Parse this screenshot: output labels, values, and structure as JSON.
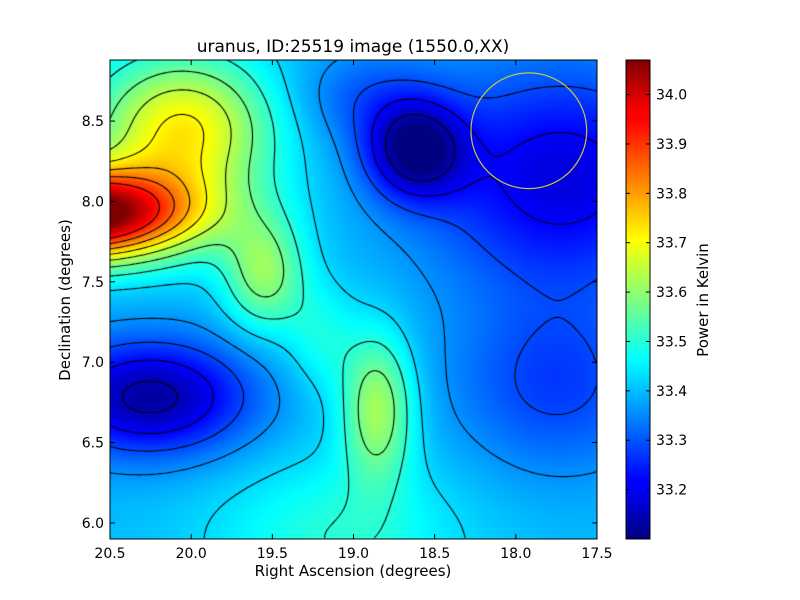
{
  "chart_data": {
    "type": "heatmap",
    "title": "uranus, ID:25519 image (1550.0,XX)",
    "xlabel": "Right Ascension (degrees)",
    "ylabel": "Declination (degrees)",
    "colorbar_label": "Power in Kelvin",
    "xlim": [
      20.5,
      17.5
    ],
    "ylim": [
      5.9,
      8.88
    ],
    "x_ticks": [
      20.5,
      20.0,
      19.5,
      19.0,
      18.5,
      18.0,
      17.5
    ],
    "x_tick_labels": [
      "20.5",
      "20.0",
      "19.5",
      "19.0",
      "18.5",
      "18.0",
      "17.5"
    ],
    "y_ticks": [
      6.0,
      6.5,
      7.0,
      7.5,
      8.0,
      8.5
    ],
    "y_tick_labels": [
      "6.0",
      "6.5",
      "7.0",
      "7.5",
      "8.0",
      "8.5"
    ],
    "colorbar_range": [
      33.1,
      34.07
    ],
    "colorbar_ticks": [
      33.2,
      33.3,
      33.4,
      33.5,
      33.6,
      33.7,
      33.8,
      33.9,
      34.0
    ],
    "colorbar_tick_labels": [
      "33.2",
      "33.3",
      "33.4",
      "33.5",
      "33.6",
      "33.7",
      "33.8",
      "33.9",
      "34.0"
    ],
    "colormap": "jet",
    "contour_levels": [
      33.15,
      33.22,
      33.29,
      33.36,
      33.43,
      33.5,
      33.57,
      33.64,
      33.71,
      33.78,
      33.85,
      33.92
    ],
    "contour_color": "#000000",
    "beam_circle": {
      "ra": 17.92,
      "dec": 8.44,
      "radius_deg": 0.36,
      "color": "#c8c83c"
    },
    "grid": false,
    "field_features": [
      {
        "kind": "max",
        "ra": 20.45,
        "dec": 7.9,
        "value": 34.07
      },
      {
        "kind": "min",
        "ra": 20.3,
        "dec": 6.78,
        "value": 33.15
      },
      {
        "kind": "min",
        "ra": 18.6,
        "dec": 8.3,
        "value": 33.12
      },
      {
        "kind": "local-max",
        "ra": 18.9,
        "dec": 6.75,
        "value": 33.62
      },
      {
        "kind": "base-high",
        "ra": 19.0,
        "dec": 5.9,
        "value": 33.5
      }
    ]
  }
}
